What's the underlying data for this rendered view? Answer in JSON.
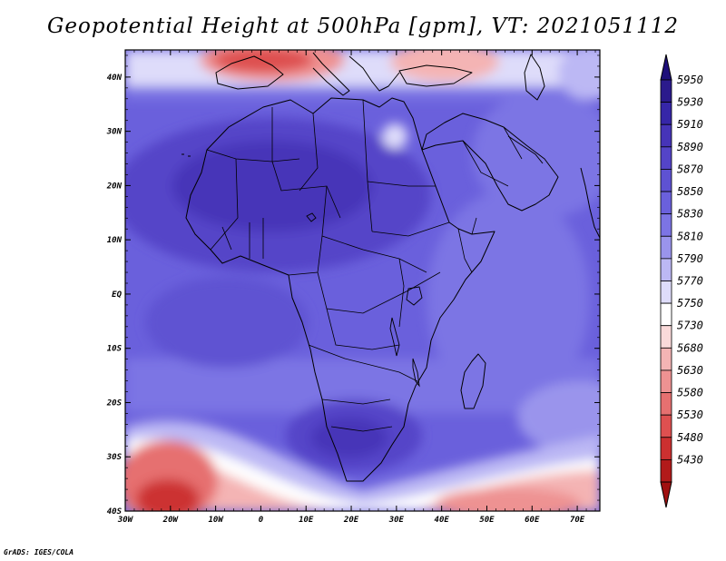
{
  "title": "Geopotential Height at 500hPa [gpm], VT: 2021051112",
  "credit": "GrADS: IGES/COLA",
  "map": {
    "lon_range": [
      -30,
      75
    ],
    "lat_range": [
      -40,
      45
    ],
    "lat_ticks": [
      {
        "value": 40,
        "label": "40N"
      },
      {
        "value": 30,
        "label": "30N"
      },
      {
        "value": 20,
        "label": "20N"
      },
      {
        "value": 10,
        "label": "10N"
      },
      {
        "value": 0,
        "label": "EQ"
      },
      {
        "value": -10,
        "label": "10S"
      },
      {
        "value": -20,
        "label": "20S"
      },
      {
        "value": -30,
        "label": "30S"
      },
      {
        "value": -40,
        "label": "40S"
      }
    ],
    "lon_ticks": [
      {
        "value": -30,
        "label": "30W"
      },
      {
        "value": -20,
        "label": "20W"
      },
      {
        "value": -10,
        "label": "10W"
      },
      {
        "value": 0,
        "label": "0"
      },
      {
        "value": 10,
        "label": "10E"
      },
      {
        "value": 20,
        "label": "20E"
      },
      {
        "value": 30,
        "label": "30E"
      },
      {
        "value": 40,
        "label": "40E"
      },
      {
        "value": 50,
        "label": "50E"
      },
      {
        "value": 60,
        "label": "60E"
      },
      {
        "value": 70,
        "label": "70E"
      }
    ]
  },
  "colorbar": {
    "levels": [
      {
        "value": "5950",
        "color": "#2b1a8c"
      },
      {
        "value": "5930",
        "color": "#3626a8"
      },
      {
        "value": "5910",
        "color": "#4634b8"
      },
      {
        "value": "5890",
        "color": "#5444c8"
      },
      {
        "value": "5870",
        "color": "#5e52d2"
      },
      {
        "value": "5850",
        "color": "#6a60dc"
      },
      {
        "value": "5830",
        "color": "#7c74e4"
      },
      {
        "value": "5810",
        "color": "#9a94ec"
      },
      {
        "value": "5790",
        "color": "#bcb8f4"
      },
      {
        "value": "5770",
        "color": "#dedcfa"
      },
      {
        "value": "5750",
        "color": "#ffffff"
      },
      {
        "value": "5730",
        "color": "#fadada"
      },
      {
        "value": "5680",
        "color": "#f4b4b4"
      },
      {
        "value": "5630",
        "color": "#ee9292"
      },
      {
        "value": "5580",
        "color": "#e67070"
      },
      {
        "value": "5530",
        "color": "#de5050"
      },
      {
        "value": "5480",
        "color": "#cc3030"
      },
      {
        "value": "5430",
        "color": "#b21a1a"
      }
    ],
    "end_colors": {
      "top": "#1e0f7a",
      "bottom": "#a01010"
    }
  }
}
